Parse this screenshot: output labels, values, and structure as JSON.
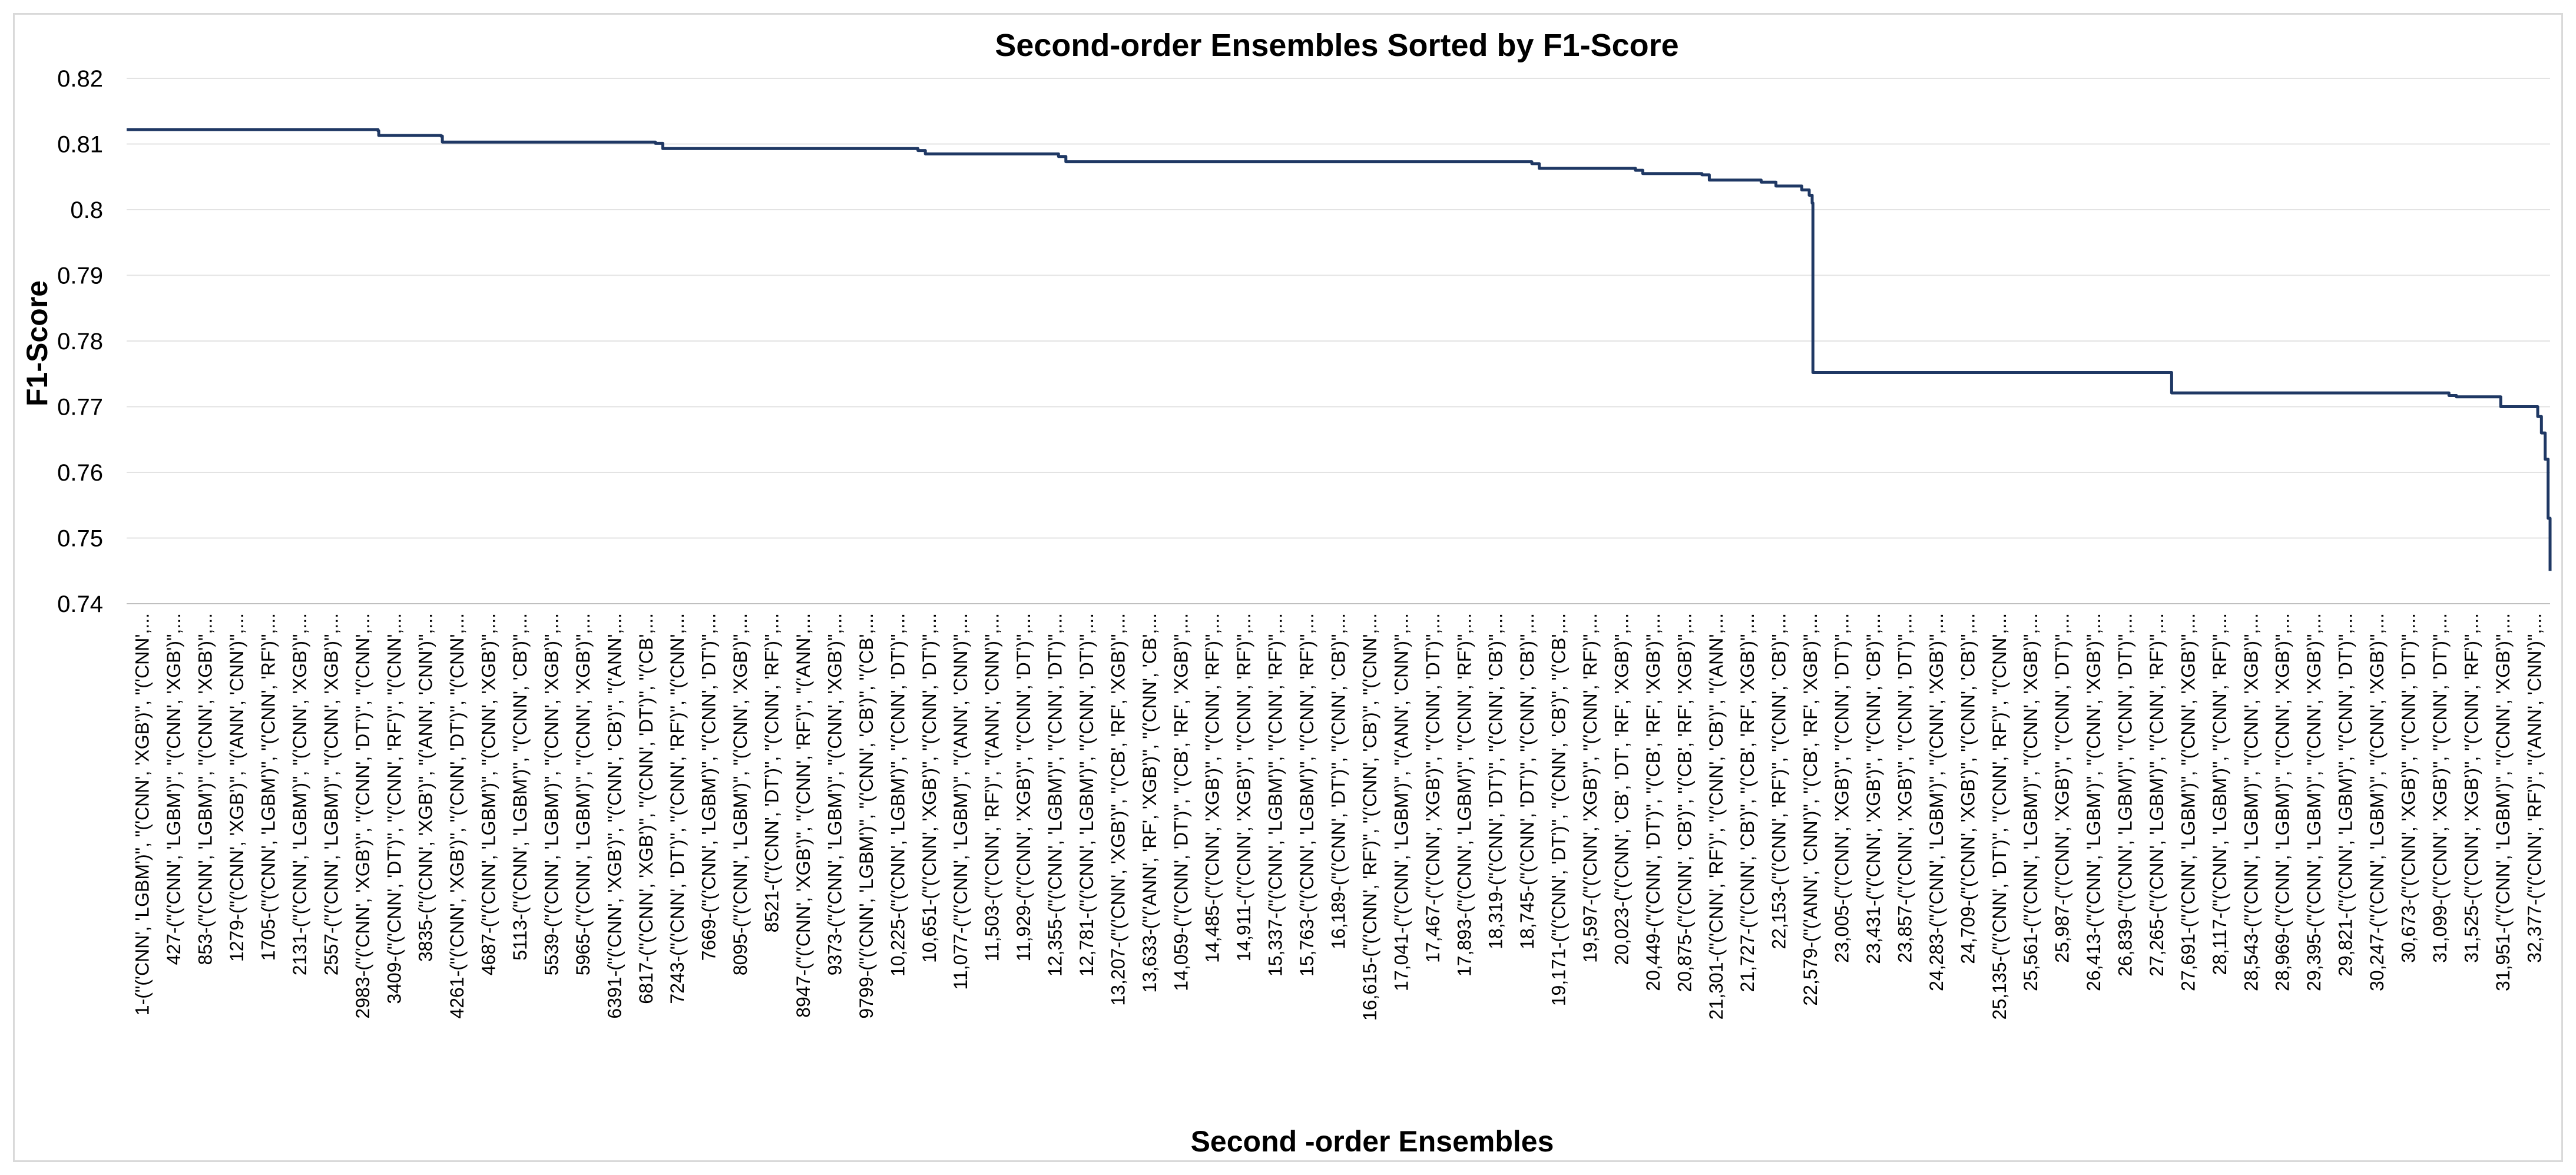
{
  "chart_data": {
    "type": "line",
    "title": "Second-order Ensembles Sorted by F1-Score",
    "xlabel": "Second -order Ensembles",
    "ylabel": "F1-Score",
    "ylim": [
      0.74,
      0.82
    ],
    "yticks": [
      "0.74",
      "0.75",
      "0.76",
      "0.77",
      "0.78",
      "0.79",
      "0.8",
      "0.81",
      "0.82"
    ],
    "grid": true,
    "legend": "none",
    "line_color": "#1f3864",
    "x_count": 32767,
    "x_tick_labels": [
      "1-(\"('CNN', 'LGBM')\", \"('CNN', 'XGB')\", \"('CNN',...",
      "427-(\"('CNN', 'LGBM')\", \"('CNN', 'XGB')\",...",
      "853-(\"('CNN', 'LGBM')\", \"('CNN', 'XGB')\",...",
      "1279-(\"('CNN', 'XGB')\", \"('ANN', 'CNN')\",...",
      "1705-(\"('CNN', 'LGBM')\", \"('CNN', 'RF')\",...",
      "2131-(\"('CNN', 'LGBM')\", \"('CNN', 'XGB')\",...",
      "2557-(\"('CNN', 'LGBM')\", \"('CNN', 'XGB')\",...",
      "2983-(\"('CNN', 'XGB')\", \"('CNN', 'DT')\", \"('CNN',...",
      "3409-(\"('CNN', 'DT')\", \"('CNN', 'RF')\", \"('CNN',...",
      "3835-(\"('CNN', 'XGB')\", \"('ANN', 'CNN')\",...",
      "4261-(\"('CNN', 'XGB')\", \"('CNN', 'DT')\", \"('CNN',...",
      "4687-(\"('CNN', 'LGBM')\", \"('CNN', 'XGB')\",...",
      "5113-(\"('CNN', 'LGBM')\", \"('CNN', 'CB')\",...",
      "5539-(\"('CNN', 'LGBM')\", \"('CNN', 'XGB')\",...",
      "5965-(\"('CNN', 'LGBM')\", \"('CNN', 'XGB')\",...",
      "6391-(\"('CNN', 'XGB')\", \"('CNN', 'CB')\", \"('ANN',...",
      "6817-(\"('CNN', 'XGB')\", \"('CNN', 'DT')\", \"('CB',...",
      "7243-(\"('CNN', 'DT')\", \"('CNN', 'RF')\", \"('CNN',...",
      "7669-(\"('CNN', 'LGBM')\", \"('CNN', 'DT')\",...",
      "8095-(\"('CNN', 'LGBM')\", \"('CNN', 'XGB')\",...",
      "8521-(\"('CNN', 'DT')\", \"('CNN', 'RF')\",...",
      "8947-(\"('CNN', 'XGB')\", \"('CNN', 'RF')\", \"('ANN',...",
      "9373-(\"('CNN', 'LGBM')\", \"('CNN', 'XGB')\",...",
      "9799-(\"('CNN', 'LGBM')\", \"('CNN', 'CB')\", \"('CB',...",
      "10,225-(\"('CNN', 'LGBM')\", \"('CNN', 'DT')\",...",
      "10,651-(\"('CNN', 'XGB')\", \"('CNN', 'DT')\",...",
      "11,077-(\"('CNN', 'LGBM')\", \"('ANN', 'CNN')\",...",
      "11,503-(\"('CNN', 'RF')\", \"('ANN', 'CNN')\",...",
      "11,929-(\"('CNN', 'XGB')\", \"('CNN', 'DT')\",...",
      "12,355-(\"('CNN', 'LGBM')\", \"('CNN', 'DT')\",...",
      "12,781-(\"('CNN', 'LGBM')\", \"('CNN', 'DT')\",...",
      "13,207-(\"('CNN', 'XGB')\", \"('CB', 'RF', 'XGB')\",...",
      "13,633-(\"('ANN', 'RF', 'XGB')\", \"('CNN', 'CB',...",
      "14,059-(\"('CNN', 'DT')\", \"('CB', 'RF', 'XGB')\",...",
      "14,485-(\"('CNN', 'XGB')\", \"('CNN', 'RF')\",...",
      "14,911-(\"('CNN', 'XGB')\", \"('CNN', 'RF')\",...",
      "15,337-(\"('CNN', 'LGBM')\", \"('CNN', 'RF')\",...",
      "15,763-(\"('CNN', 'LGBM')\", \"('CNN', 'RF')\",...",
      "16,189-(\"('CNN', 'DT')\", \"('CNN', 'CB')\",...",
      "16,615-(\"('CNN', 'RF')\", \"('CNN', 'CB')\", \"('CNN',...",
      "17,041-(\"('CNN', 'LGBM')\", \"('ANN', 'CNN')\",...",
      "17,467-(\"('CNN', 'XGB')\", \"('CNN', 'DT')\",...",
      "17,893-(\"('CNN', 'LGBM')\", \"('CNN', 'RF')\",...",
      "18,319-(\"('CNN', 'DT')\", \"('CNN', 'CB')\",...",
      "18,745-(\"('CNN', 'DT')\", \"('CNN', 'CB')\",...",
      "19,171-(\"('CNN', 'DT')\", \"('CNN', 'CB')\", \"('CB',...",
      "19,597-(\"('CNN', 'XGB')\", \"('CNN', 'RF')\",...",
      "20,023-(\"('CNN', 'CB', 'DT', 'RF', 'XGB')\",...",
      "20,449-(\"('CNN', 'DT')\", \"('CB', 'RF', 'XGB')\",...",
      "20,875-(\"('CNN', 'CB')\", \"('CB', 'RF', 'XGB')\",...",
      "21,301-(\"('CNN', 'RF')\", \"('CNN', 'CB')\", \"('ANN',...",
      "21,727-(\"('CNN', 'CB')\", \"('CB', 'RF', 'XGB')\",...",
      "22,153-(\"('CNN', 'RF')\", \"('CNN', 'CB')\",...",
      "22,579-(\"('ANN', 'CNN')\", \"('CB', 'RF', 'XGB')\",...",
      "23,005-(\"('CNN', 'XGB')\", \"('CNN', 'DT')\",...",
      "23,431-(\"('CNN', 'XGB')\", \"('CNN', 'CB')\",...",
      "23,857-(\"('CNN', 'XGB')\", \"('CNN', 'DT')\",...",
      "24,283-(\"('CNN', 'LGBM')\", \"('CNN', 'XGB')\",...",
      "24,709-(\"('CNN', 'XGB')\", \"('CNN', 'CB')\",...",
      "25,135-(\"('CNN', 'DT')\", \"('CNN', 'RF')\", \"('CNN',...",
      "25,561-(\"('CNN', 'LGBM')\", \"('CNN', 'XGB')\",...",
      "25,987-(\"('CNN', 'XGB')\", \"('CNN', 'DT')\",...",
      "26,413-(\"('CNN', 'LGBM')\", \"('CNN', 'XGB')\",...",
      "26,839-(\"('CNN', 'LGBM')\", \"('CNN', 'DT')\",...",
      "27,265-(\"('CNN', 'LGBM')\", \"('CNN', 'RF')\",...",
      "27,691-(\"('CNN', 'LGBM')\", \"('CNN', 'XGB')\",...",
      "28,117-(\"('CNN', 'LGBM')\", \"('CNN', 'RF')\",...",
      "28,543-(\"('CNN', 'LGBM')\", \"('CNN', 'XGB')\",...",
      "28,969-(\"('CNN', 'LGBM')\", \"('CNN', 'XGB')\",...",
      "29,395-(\"('CNN', 'LGBM')\", \"('CNN', 'XGB')\",...",
      "29,821-(\"('CNN', 'LGBM')\", \"('CNN', 'DT')\",...",
      "30,247-(\"('CNN', 'LGBM')\", \"('CNN', 'XGB')\",...",
      "30,673-(\"('CNN', 'XGB')\", \"('CNN', 'DT')\",...",
      "31,099-(\"('CNN', 'XGB')\", \"('CNN', 'DT')\",...",
      "31,525-(\"('CNN', 'XGB')\", \"('CNN', 'RF')\",...",
      "31,951-(\"('CNN', 'LGBM')\", \"('CNN', 'XGB')\",...",
      "32,377-(\"('CNN', 'RF')\", \"('ANN', 'CNN')\",..."
    ],
    "series": [
      {
        "x": [
          1,
          3400,
          3410,
          4250,
          4270,
          7150,
          7250,
          10700,
          10800,
          12600,
          12700,
          19000,
          19100,
          20400,
          20500,
          21300,
          21400,
          22100,
          22300,
          22650,
          22750,
          22790,
          22800,
          27600,
          27650,
          31400,
          31500,
          31900,
          32100,
          32600,
          32650,
          32700,
          32740,
          32767
        ],
        "y": [
          0.8122,
          0.812,
          0.8113,
          0.8112,
          0.8103,
          0.8101,
          0.8093,
          0.809,
          0.8085,
          0.8081,
          0.8073,
          0.807,
          0.8063,
          0.806,
          0.8055,
          0.8053,
          0.8045,
          0.8042,
          0.8036,
          0.803,
          0.8022,
          0.801,
          0.7752,
          0.7752,
          0.7721,
          0.7717,
          0.7715,
          0.7715,
          0.77,
          0.7685,
          0.766,
          0.762,
          0.753,
          0.745
        ]
      }
    ]
  }
}
